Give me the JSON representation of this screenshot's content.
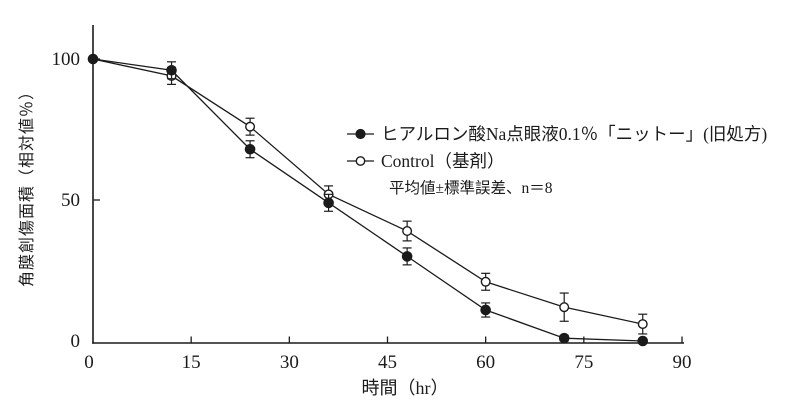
{
  "chart_data": {
    "type": "line",
    "x": [
      0,
      12,
      24,
      36,
      48,
      60,
      72,
      84
    ],
    "series": [
      {
        "name": "ヒアルロン酸Na点眼液0.1％「ニットー」(旧処方)",
        "marker": "filled-circle",
        "values": [
          100,
          96,
          68,
          49,
          30,
          11,
          1,
          0
        ],
        "errors": [
          0,
          3,
          3,
          3,
          3,
          2.5,
          1,
          0
        ]
      },
      {
        "name": "Control（基剤）",
        "marker": "open-circle",
        "values": [
          100,
          94,
          76,
          52,
          39,
          21,
          12,
          6
        ],
        "errors": [
          0,
          3,
          3,
          3,
          3.5,
          3,
          5,
          3.5
        ]
      }
    ],
    "xlabel": "時間（hr）",
    "ylabel": "角膜創傷面積（相対値％）",
    "note": "平均値±標準誤差、n＝8",
    "x_ticks": [
      0,
      15,
      30,
      45,
      60,
      75,
      90
    ],
    "y_ticks": [
      0,
      50,
      100
    ],
    "xlim": [
      0,
      90
    ],
    "ylim": [
      0,
      105
    ],
    "grid": false,
    "legend_position": "center-right",
    "colors": {
      "ink": "#1b1b1b",
      "background": "#ffffff"
    }
  }
}
